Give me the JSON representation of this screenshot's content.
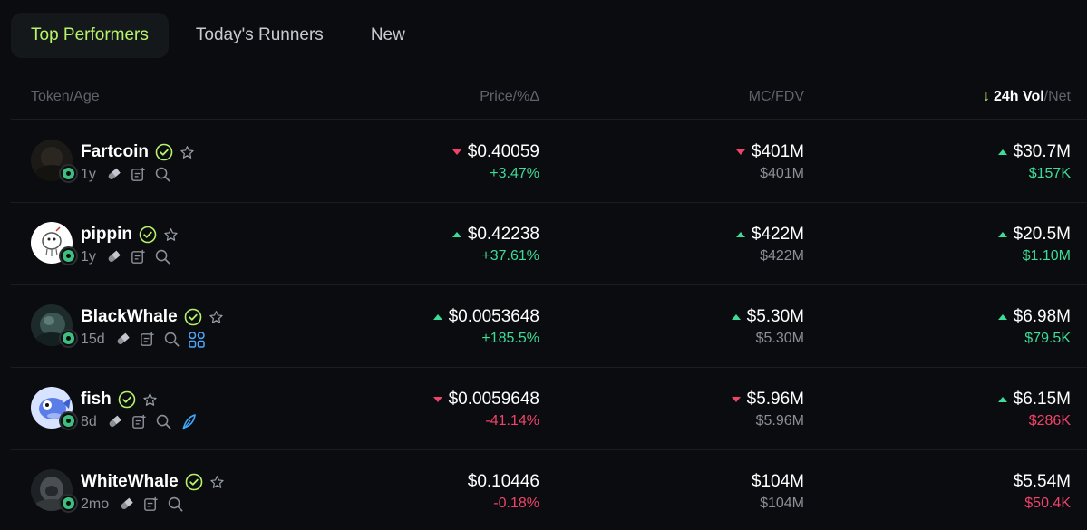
{
  "tabs": [
    {
      "label": "Top Performers",
      "active": true
    },
    {
      "label": "Today's Runners",
      "active": false
    },
    {
      "label": "New",
      "active": false
    }
  ],
  "columns": {
    "token": "Token/Age",
    "price": "Price/%Δ",
    "mc": "MC/FDV",
    "vol_arrow": "↓",
    "vol_active": "24h Vol",
    "vol_rest": "/Net"
  },
  "rows": [
    {
      "name": "Fartcoin",
      "age": "1y",
      "price": "$0.40059",
      "price_dir": "down",
      "change": "+3.47%",
      "change_color": "green",
      "mc": "$401M",
      "mc_dir": "down",
      "fdv": "$401M",
      "vol": "$30.7M",
      "vol_dir": "up",
      "net": "$157K",
      "net_color": "green",
      "extra_icon": "none",
      "avatar": "dark"
    },
    {
      "name": "pippin",
      "age": "1y",
      "price": "$0.42238",
      "price_dir": "up",
      "change": "+37.61%",
      "change_color": "green",
      "mc": "$422M",
      "mc_dir": "up",
      "fdv": "$422M",
      "vol": "$20.5M",
      "vol_dir": "up",
      "net": "$1.10M",
      "net_color": "green",
      "extra_icon": "none",
      "avatar": "white"
    },
    {
      "name": "BlackWhale",
      "age": "15d",
      "price": "$0.0053648",
      "price_dir": "up",
      "change": "+185.5%",
      "change_color": "green",
      "mc": "$5.30M",
      "mc_dir": "up",
      "fdv": "$5.30M",
      "vol": "$6.98M",
      "vol_dir": "up",
      "net": "$79.5K",
      "net_color": "green",
      "extra_icon": "group-icon",
      "avatar": "teal"
    },
    {
      "name": "fish",
      "age": "8d",
      "price": "$0.0059648",
      "price_dir": "down",
      "change": "-41.14%",
      "change_color": "red",
      "mc": "$5.96M",
      "mc_dir": "down",
      "fdv": "$5.96M",
      "vol": "$6.15M",
      "vol_dir": "up",
      "net": "$286K",
      "net_color": "red",
      "extra_icon": "feather-icon",
      "avatar": "blue"
    },
    {
      "name": "WhiteWhale",
      "age": "2mo",
      "price": "$0.10446",
      "price_dir": "none",
      "change": "-0.18%",
      "change_color": "red",
      "mc": "$104M",
      "mc_dir": "none",
      "fdv": "$104M",
      "vol": "$5.54M",
      "vol_dir": "none",
      "net": "$50.4K",
      "net_color": "red",
      "extra_icon": "none",
      "avatar": "gray"
    }
  ],
  "colors": {
    "accent": "#b6f36a",
    "up": "#3ddc97",
    "down": "#f0436a",
    "background": "#0b0c10"
  }
}
